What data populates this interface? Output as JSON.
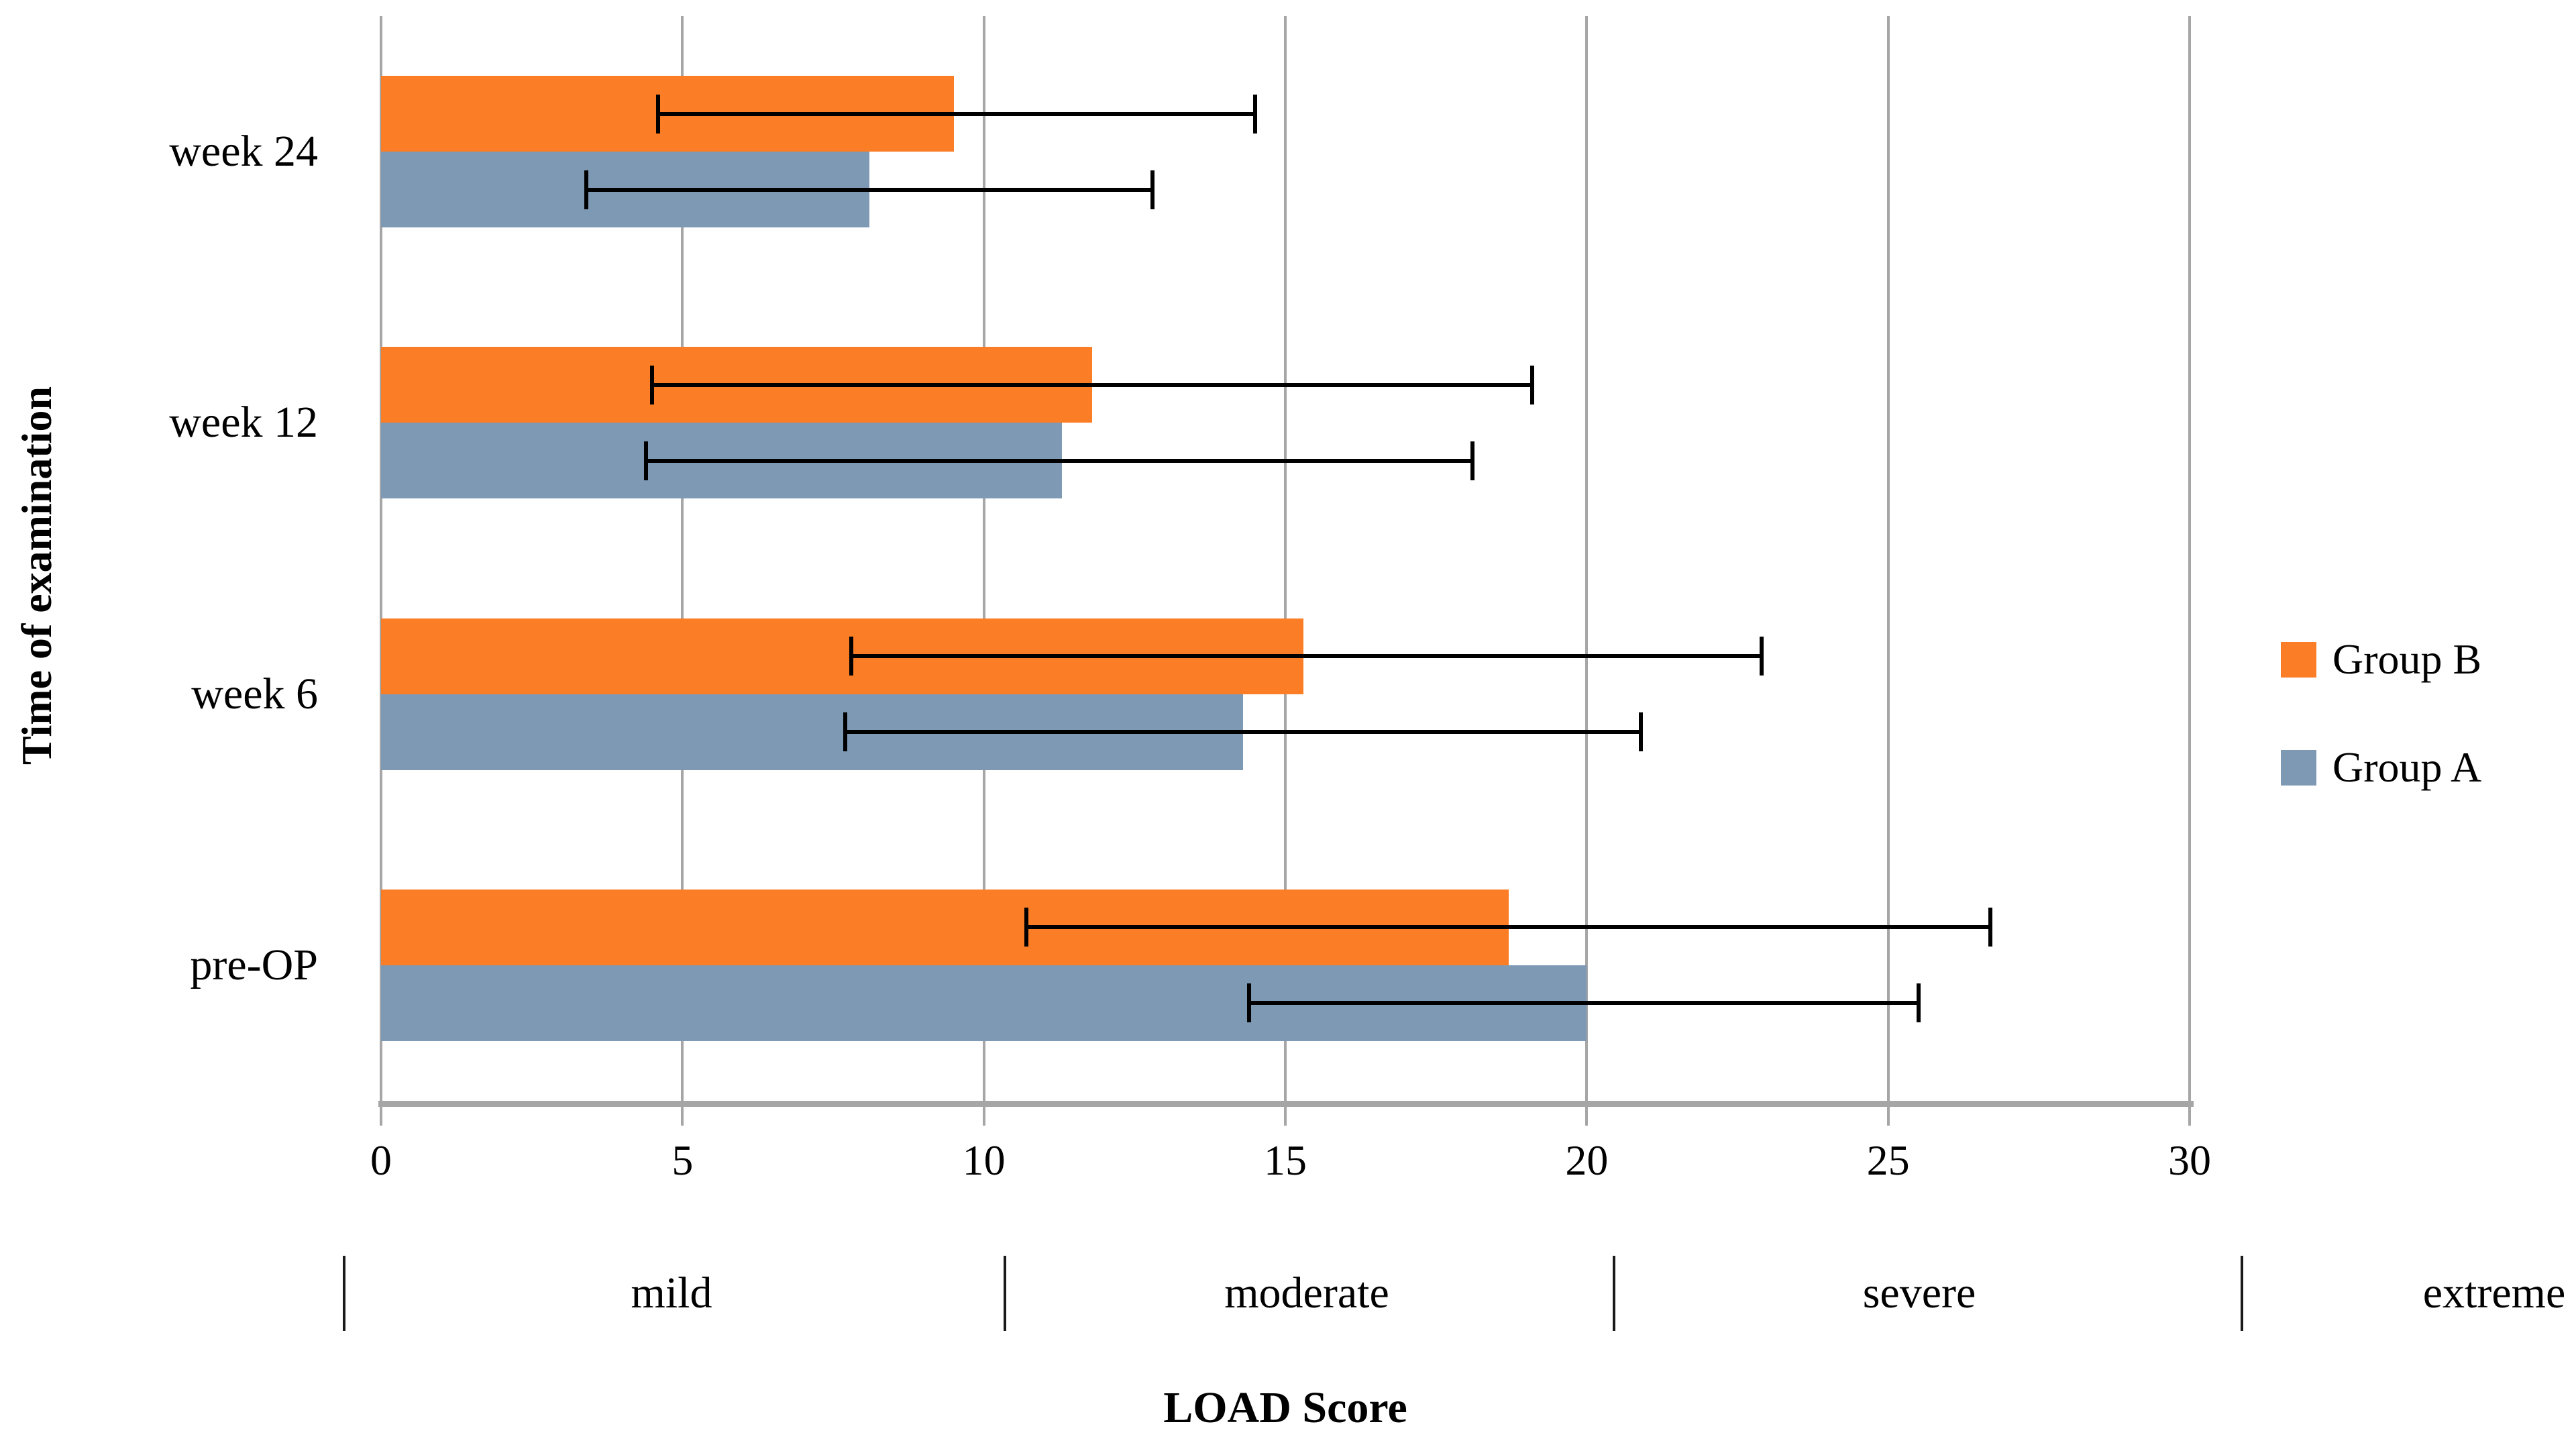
{
  "chart_data": {
    "type": "bar",
    "orientation": "horizontal",
    "title": "",
    "xlabel": "LOAD Score",
    "ylabel": "Time of examination",
    "xlim": [
      0,
      30
    ],
    "x_ticks": [
      0,
      5,
      10,
      15,
      20,
      25,
      30
    ],
    "grid": "vertical-gridlines-on",
    "legend_position": "right",
    "categories_top_to_bottom": [
      "week 24",
      "week 12",
      "week 6",
      "pre-OP"
    ],
    "series": [
      {
        "name": "Group B",
        "color": "#fb7d26",
        "values": [
          9.5,
          11.8,
          15.3,
          18.7
        ],
        "error_low": [
          4.6,
          4.5,
          7.8,
          10.7
        ],
        "error_high": [
          14.5,
          19.1,
          22.9,
          26.7
        ]
      },
      {
        "name": "Group A",
        "color": "#7e99b4",
        "values": [
          8.1,
          11.3,
          14.3,
          20.0
        ],
        "error_low": [
          3.4,
          4.4,
          7.7,
          14.4
        ],
        "error_high": [
          12.8,
          18.1,
          20.9,
          25.5
        ]
      }
    ],
    "severity_scale": {
      "labels": [
        "mild",
        "moderate",
        "severe",
        "extreme"
      ],
      "range_boundaries": [
        0,
        10,
        20,
        30
      ],
      "label_center_values": [
        5,
        15,
        25,
        35
      ]
    }
  },
  "legend": {
    "items": [
      {
        "label": "Group B",
        "color": "#fb7d26"
      },
      {
        "label": "Group A",
        "color": "#7e99b4"
      }
    ]
  },
  "colors": {
    "group_b": "#fb7d26",
    "group_a": "#7e99b4",
    "gridline": "#a6a6a6",
    "error_bar": "#000000",
    "background": "#ffffff"
  }
}
